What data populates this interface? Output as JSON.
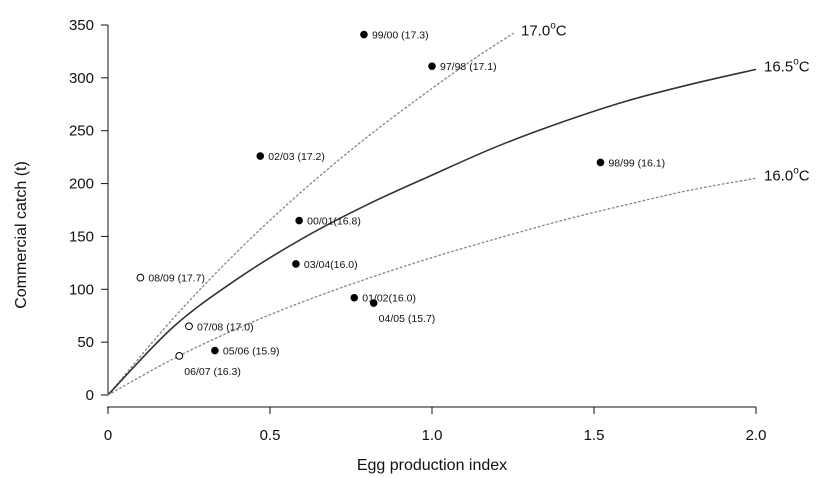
{
  "chart_data": {
    "type": "scatter",
    "xlabel": "Egg production index",
    "ylabel": "Commercial catch (t)",
    "xlim": [
      0,
      2.0
    ],
    "ylim": [
      0,
      350
    ],
    "x_ticks": [
      0,
      0.5,
      1.0,
      1.5,
      2.0
    ],
    "x_tick_labels": [
      "0",
      "0.5",
      "1.0",
      "1.5",
      "2.0"
    ],
    "y_ticks": [
      0,
      50,
      100,
      150,
      200,
      250,
      300,
      350
    ],
    "y_tick_labels": [
      "0",
      "50",
      "100",
      "150",
      "200",
      "250",
      "300",
      "350"
    ],
    "grid": false,
    "curves": [
      {
        "name": "17.0°C",
        "label_main": "17.0",
        "label_sup": "o",
        "label_unit": "C",
        "style": "dotted",
        "color": "#8a8a8a",
        "points": [
          [
            0,
            0
          ],
          [
            0.2,
            72
          ],
          [
            0.4,
            136
          ],
          [
            0.6,
            193
          ],
          [
            0.8,
            244
          ],
          [
            1.0,
            290
          ],
          [
            1.13,
            318
          ],
          [
            1.25,
            342
          ]
        ]
      },
      {
        "name": "16.5°C",
        "label_main": "16.5",
        "label_sup": "o",
        "label_unit": "C",
        "style": "solid",
        "color": "#333333",
        "points": [
          [
            0,
            0
          ],
          [
            0.2,
            64
          ],
          [
            0.4,
            110
          ],
          [
            0.6,
            148
          ],
          [
            0.8,
            180
          ],
          [
            1.0,
            208
          ],
          [
            1.2,
            235
          ],
          [
            1.4,
            258
          ],
          [
            1.6,
            278
          ],
          [
            1.8,
            294
          ],
          [
            2.0,
            308
          ]
        ]
      },
      {
        "name": "16.0°C",
        "label_main": "16.0",
        "label_sup": "o",
        "label_unit": "C",
        "style": "dotted",
        "color": "#8a8a8a",
        "points": [
          [
            0,
            0
          ],
          [
            0.2,
            34
          ],
          [
            0.4,
            63
          ],
          [
            0.6,
            88
          ],
          [
            0.8,
            110
          ],
          [
            1.0,
            130
          ],
          [
            1.2,
            148
          ],
          [
            1.4,
            165
          ],
          [
            1.6,
            180
          ],
          [
            1.8,
            194
          ],
          [
            2.0,
            205
          ]
        ]
      }
    ],
    "points": [
      {
        "label": "99/00 (17.3)",
        "x": 0.79,
        "y": 341,
        "filled": true
      },
      {
        "label": "97/98 (17.1)",
        "x": 1.0,
        "y": 311,
        "filled": true
      },
      {
        "label": "02/03 (17.2)",
        "x": 0.47,
        "y": 226,
        "filled": true
      },
      {
        "label": "98/99 (16.1)",
        "x": 1.52,
        "y": 220,
        "filled": true
      },
      {
        "label": "00/01(16.8)",
        "x": 0.59,
        "y": 165,
        "filled": true
      },
      {
        "label": "03/04(16.0)",
        "x": 0.58,
        "y": 124,
        "filled": true
      },
      {
        "label": "08/09 (17.7)",
        "x": 0.1,
        "y": 111,
        "filled": false
      },
      {
        "label": "01/02(16.0)",
        "x": 0.76,
        "y": 92,
        "filled": true
      },
      {
        "label": "04/05 (15.7)",
        "x": 0.82,
        "y": 87,
        "filled": true
      },
      {
        "label": "07/08 (17.0)",
        "x": 0.25,
        "y": 65,
        "filled": false
      },
      {
        "label": "05/06 (15.9)",
        "x": 0.33,
        "y": 42,
        "filled": true
      },
      {
        "label": "06/07 (16.3)",
        "x": 0.22,
        "y": 37,
        "filled": false
      }
    ]
  }
}
